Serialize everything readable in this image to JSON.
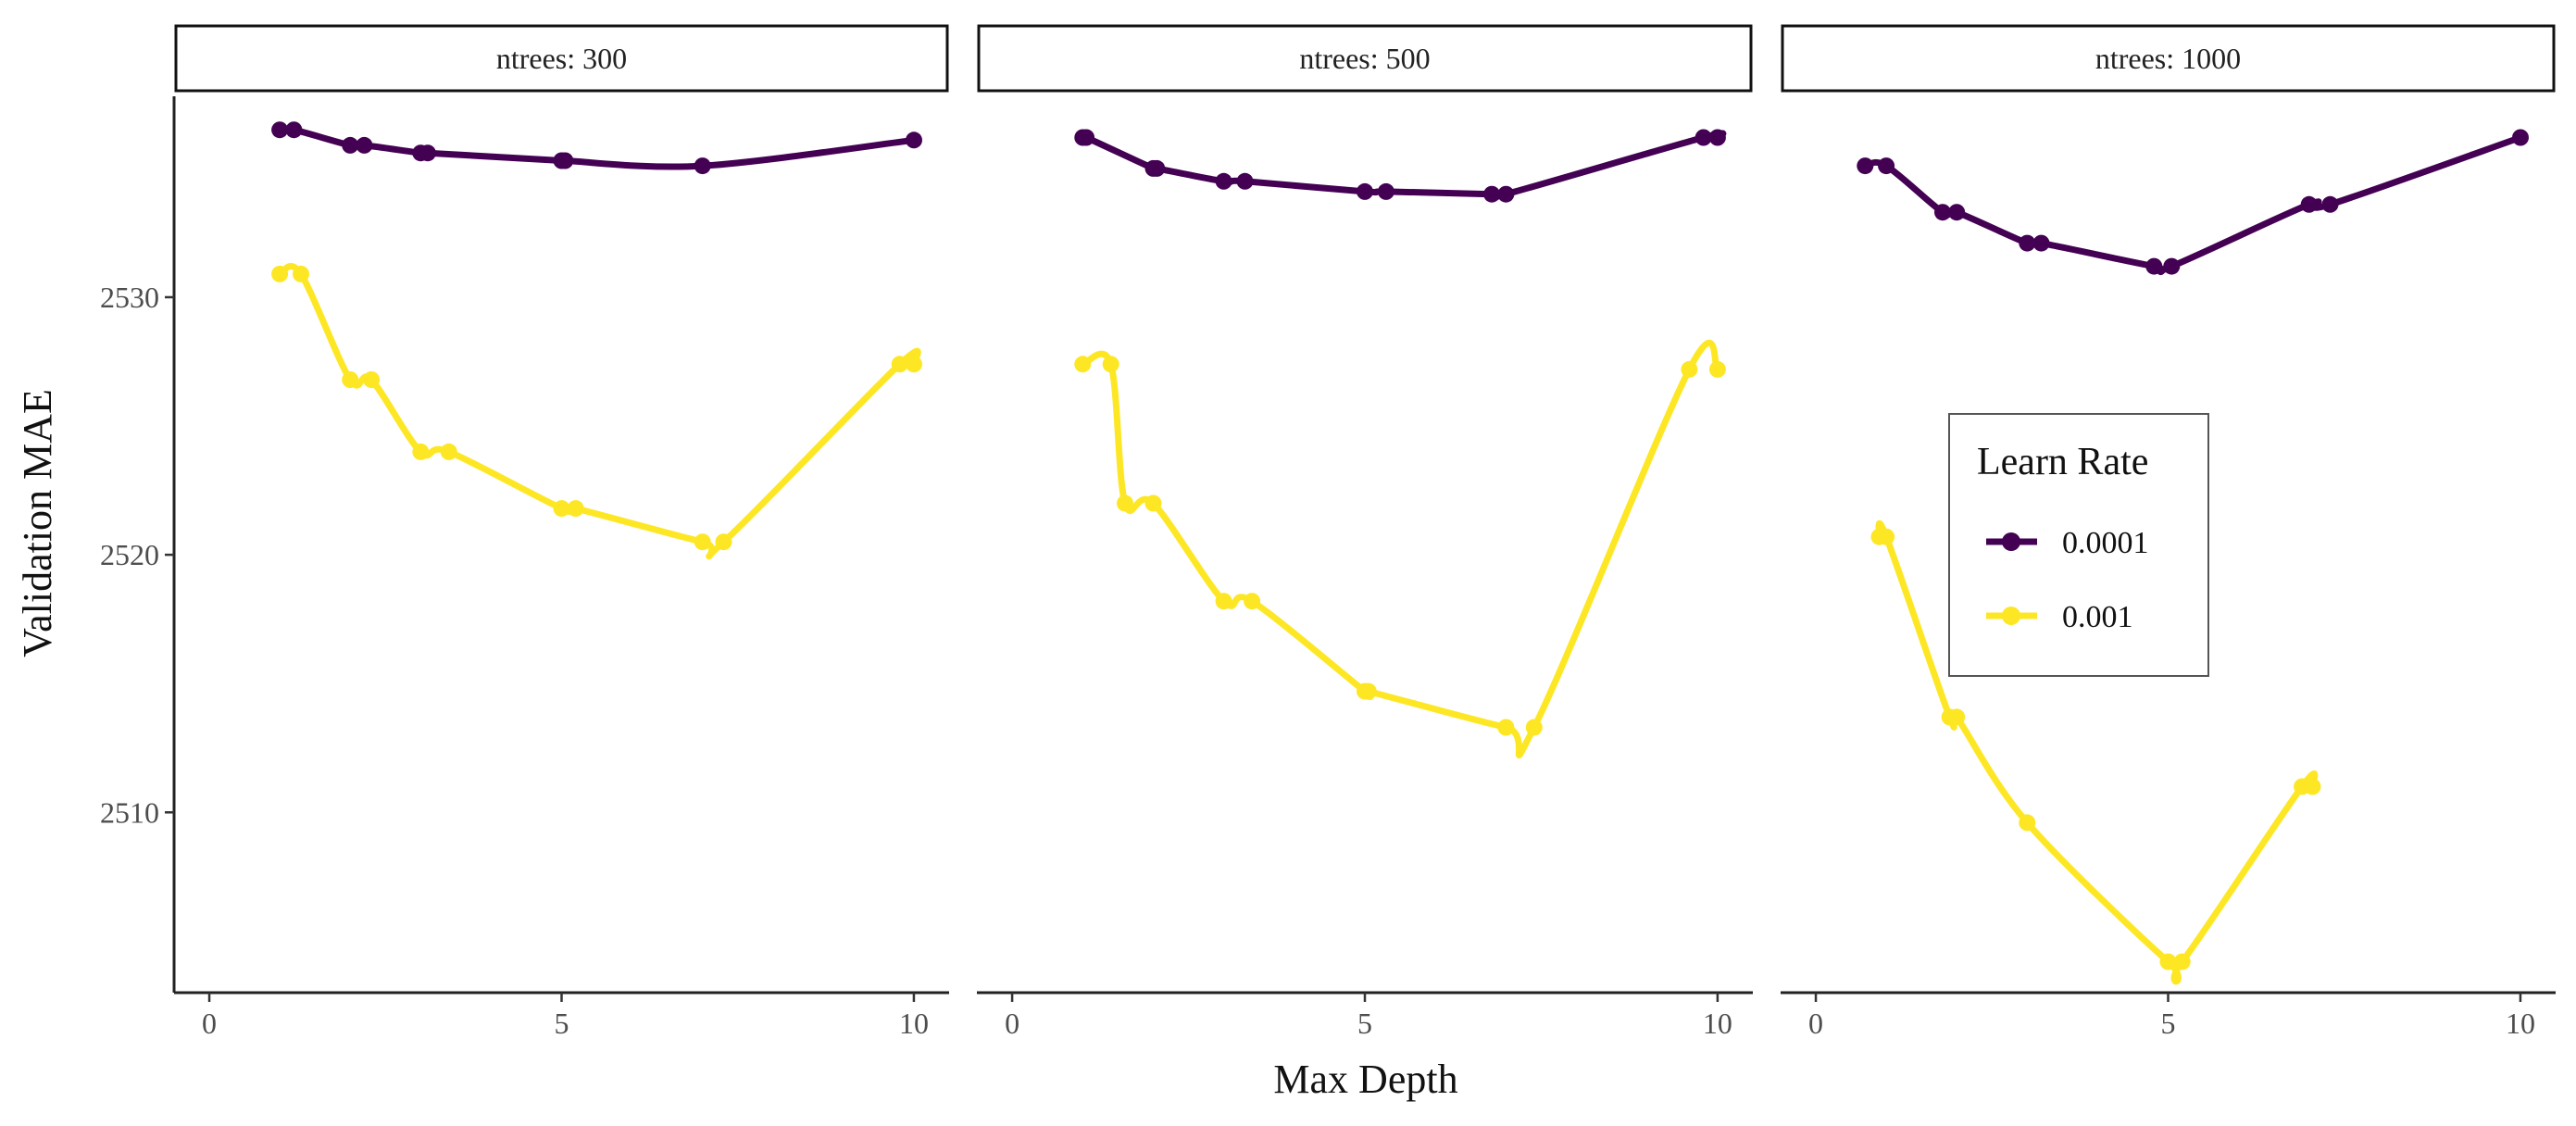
{
  "chart_data": {
    "type": "line",
    "xlabel": "Max Depth",
    "ylabel": "Validation MAE",
    "xlim": [
      -0.5,
      10.5
    ],
    "ylim": [
      2503.0,
      2537.8
    ],
    "x_ticks": [
      0,
      5,
      10
    ],
    "x_tick_labels": [
      "0",
      "5",
      "10"
    ],
    "y_ticks": [
      2510,
      2520,
      2530
    ],
    "y_tick_labels": [
      "2510",
      "2520",
      "2530"
    ],
    "grid": false,
    "legend": {
      "title": "Learn Rate",
      "placement": "inside third panel, right-center",
      "entries": [
        "0.0001",
        "0.001"
      ]
    },
    "colors": {
      "0.0001": "#440154",
      "0.001": "#fde725"
    },
    "facets": [
      {
        "label": "ntrees: 300",
        "series": [
          {
            "name": "0.0001",
            "x": [
              1,
              1.2,
              2,
              2.2,
              3,
              3.1,
              5,
              5.05,
              7,
              10
            ],
            "y": [
              2536.5,
              2536.5,
              2535.9,
              2535.9,
              2535.6,
              2535.6,
              2535.3,
              2535.3,
              2535.1,
              2536.1
            ]
          },
          {
            "name": "0.001",
            "x": [
              1,
              1.3,
              2,
              2.3,
              3,
              3.4,
              5,
              5.2,
              7,
              7.3,
              9.8,
              10
            ],
            "y": [
              2530.9,
              2530.9,
              2526.8,
              2526.8,
              2524.0,
              2524.0,
              2521.8,
              2521.8,
              2520.5,
              2520.5,
              2527.4,
              2527.4
            ]
          }
        ]
      },
      {
        "label": "ntrees: 500",
        "series": [
          {
            "name": "0.0001",
            "x": [
              1,
              1.05,
              2,
              2.05,
              3,
              3.3,
              5,
              5.3,
              6.8,
              7,
              9.8,
              10
            ],
            "y": [
              2536.2,
              2536.2,
              2535.0,
              2535.0,
              2534.5,
              2534.5,
              2534.1,
              2534.1,
              2534.0,
              2534.0,
              2536.2,
              2536.2
            ]
          },
          {
            "name": "0.001",
            "x": [
              1,
              1.4,
              1.6,
              2,
              3,
              3.4,
              5,
              5.05,
              7,
              7.4,
              9.6,
              10
            ],
            "y": [
              2527.4,
              2527.4,
              2522.0,
              2522.0,
              2518.2,
              2518.2,
              2514.7,
              2514.7,
              2513.3,
              2513.3,
              2527.2,
              2527.2
            ]
          }
        ]
      },
      {
        "label": "ntrees: 1000",
        "series": [
          {
            "name": "0.0001",
            "x": [
              0.7,
              1,
              1.8,
              2,
              3,
              3.2,
              4.8,
              5.05,
              7,
              7.3,
              10
            ],
            "y": [
              2535.1,
              2535.1,
              2533.3,
              2533.3,
              2532.1,
              2532.1,
              2531.2,
              2531.2,
              2533.6,
              2533.6,
              2536.2
            ]
          },
          {
            "name": "0.001",
            "x": [
              0.9,
              1,
              1.9,
              2,
              3,
              5,
              5.2,
              6.9,
              7.05
            ],
            "y": [
              2520.7,
              2520.7,
              2513.7,
              2513.7,
              2509.6,
              2504.2,
              2504.2,
              2511.0,
              2511.0
            ]
          }
        ]
      }
    ]
  }
}
